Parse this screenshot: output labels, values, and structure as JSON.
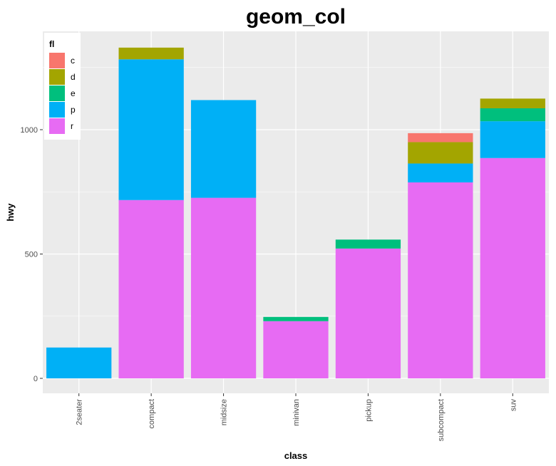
{
  "chart_data": {
    "type": "bar",
    "stacked": true,
    "title": "geom_col",
    "xlabel": "class",
    "ylabel": "hwy",
    "ylim": [
      0,
      1335
    ],
    "yticks": [
      0,
      500,
      1000
    ],
    "grid": true,
    "legend": {
      "title": "fl",
      "position": "top-left",
      "entries": [
        "c",
        "d",
        "e",
        "p",
        "r"
      ]
    },
    "categories": [
      "2seater",
      "compact",
      "midsize",
      "minivan",
      "pickup",
      "subcompact",
      "suv"
    ],
    "series": [
      {
        "name": "r",
        "color": "#E76BF3",
        "values": [
          0,
          717,
          726,
          230,
          522,
          788,
          886
        ]
      },
      {
        "name": "p",
        "color": "#00B0F6",
        "values": [
          124,
          566,
          393,
          0,
          0,
          76,
          148
        ]
      },
      {
        "name": "e",
        "color": "#00BF7D",
        "values": [
          0,
          0,
          0,
          17,
          36,
          0,
          52
        ]
      },
      {
        "name": "d",
        "color": "#A3A500",
        "values": [
          0,
          47,
          0,
          0,
          0,
          86,
          39
        ]
      },
      {
        "name": "c",
        "color": "#F8766D",
        "values": [
          0,
          0,
          0,
          0,
          0,
          36,
          0
        ]
      }
    ]
  }
}
